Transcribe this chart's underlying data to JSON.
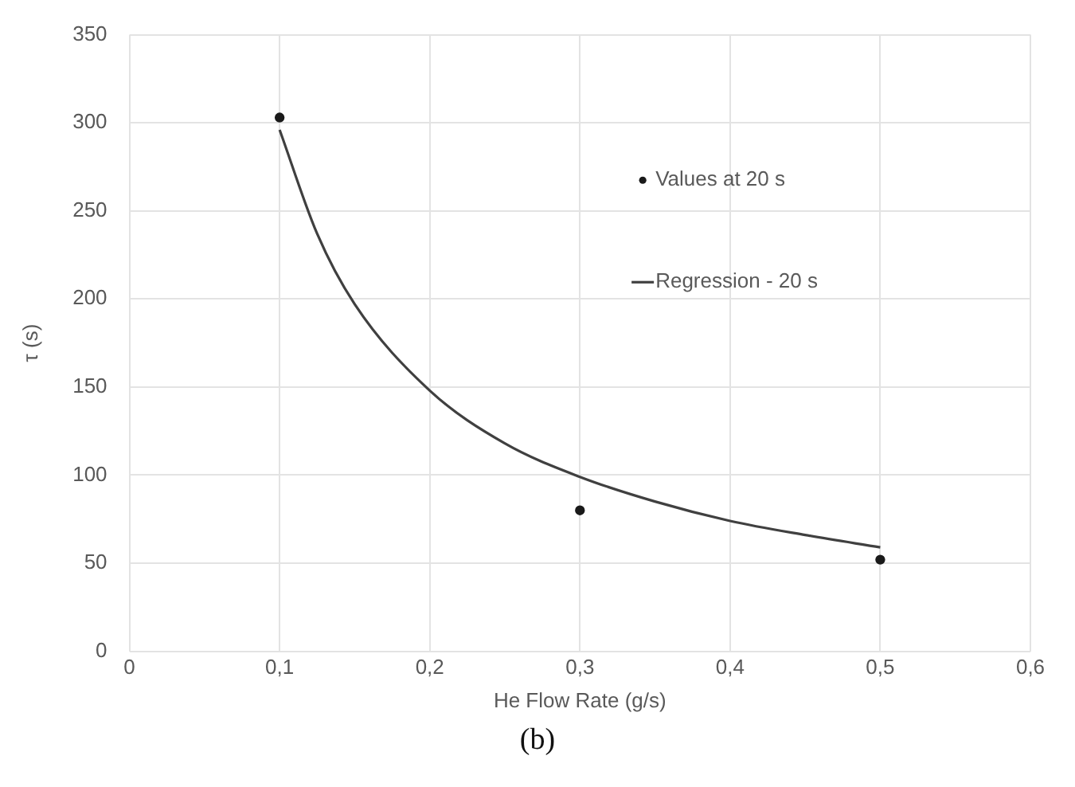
{
  "chart_data": {
    "type": "scatter",
    "xlabel": "He Flow Rate (g/s)",
    "ylabel": "τ (s)",
    "annotations": [
      "(b)"
    ],
    "xlim": [
      0,
      0.6
    ],
    "xticks": [
      0,
      {
        "value": 0.1,
        "label": "0,1"
      },
      {
        "value": 0.2,
        "label": "0,2"
      },
      {
        "value": 0.3,
        "label": "0,3"
      },
      {
        "value": 0.4,
        "label": "0,4"
      },
      {
        "value": 0.5,
        "label": "0,5"
      },
      {
        "value": 0.6,
        "label": "0,6"
      }
    ],
    "ylim": [
      0,
      350
    ],
    "yticks": [
      0,
      50,
      100,
      150,
      200,
      250,
      300,
      350
    ],
    "grid": true,
    "legend": "top right",
    "marker": "circle",
    "series": [
      {
        "name": "Values at 20 s",
        "color": "#1a1a1a",
        "x": [
          0.1,
          0.3,
          0.5
        ],
        "values": [
          303,
          80,
          52
        ]
      },
      {
        "name": "Regression - 20 s",
        "type": "line",
        "color": "#404040",
        "line_style": "solid",
        "marker": "none",
        "x": [
          0.1,
          0.125,
          0.15,
          0.2,
          0.25,
          0.3,
          0.35,
          0.4,
          0.45,
          0.5
        ],
        "values": [
          296,
          237,
          197,
          148,
          118,
          99,
          85,
          74,
          66,
          59
        ]
      }
    ]
  }
}
